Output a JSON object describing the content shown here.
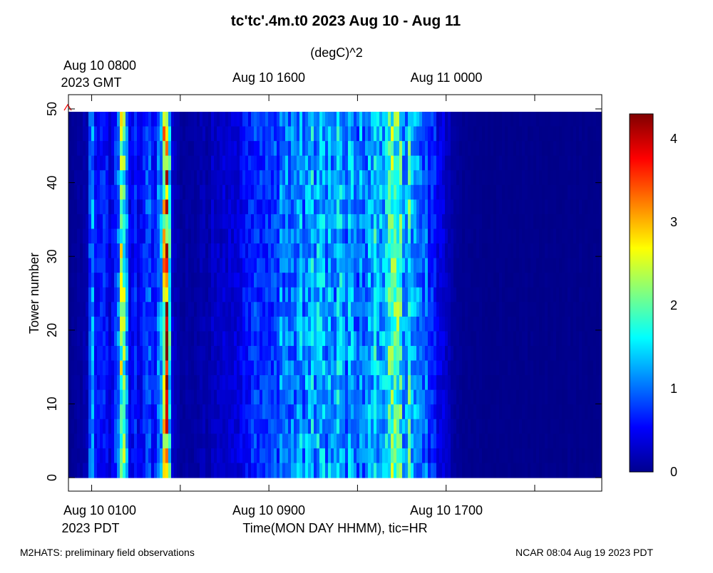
{
  "chart_data": {
    "type": "heatmap",
    "title": "tc'tc'.4m.t0 2023 Aug 10 - Aug 11",
    "subtitle": "(degC)^2",
    "ylabel": "Tower number",
    "xlabel": "Time(MON DAY HHMM), tic=HR",
    "ylim": [
      0,
      50
    ],
    "y_ticks": [
      "0",
      "10",
      "20",
      "30",
      "40",
      "50"
    ],
    "bottom_axis": {
      "timezone_label": "2023 PDT",
      "tick_labels": [
        "Aug 10 0100",
        "Aug 10 0900",
        "Aug 10 1700"
      ]
    },
    "top_axis": {
      "timezone_label": "2023 GMT",
      "tick_labels": [
        "Aug 10 0800",
        "Aug 10 1600",
        "Aug 11 0000"
      ]
    },
    "time_range_pdt_hours": [
      0,
      24
    ],
    "hour_ticks_pdt": [
      1,
      5,
      9,
      13,
      17,
      21
    ],
    "colorbar": {
      "min": 0,
      "max": 4.3,
      "tick_labels": [
        "0",
        "1",
        "2",
        "3",
        "4"
      ],
      "colormap": "jet"
    },
    "time_profile": {
      "note": "approximate mean variance (degC)^2 per column",
      "hours_pdt": [
        0.0,
        0.8,
        1.0,
        1.2,
        1.5,
        1.8,
        2.2,
        2.4,
        2.7,
        3.0,
        3.3,
        3.6,
        3.8,
        4.2,
        4.4,
        4.6,
        5.0,
        5.5,
        6.0,
        7.0,
        8.0,
        9.0,
        10.0,
        11.0,
        12.0,
        13.0,
        14.0,
        14.5,
        15.0,
        15.6,
        16.0,
        16.5,
        17.0,
        17.4,
        18.0,
        19.0,
        24.0
      ],
      "values": [
        0.05,
        0.2,
        1.3,
        0.5,
        0.6,
        0.4,
        0.8,
        2.4,
        0.5,
        0.6,
        0.4,
        1.1,
        0.4,
        1.5,
        4.1,
        0.3,
        0.15,
        0.15,
        0.2,
        0.3,
        0.5,
        0.8,
        1.1,
        1.2,
        1.3,
        1.0,
        1.4,
        1.9,
        1.6,
        1.3,
        0.9,
        0.6,
        0.3,
        0.1,
        0.07,
        0.05,
        0.05
      ]
    },
    "marker": {
      "symbol": "^",
      "hour_pdt": 0.0,
      "color": "#ff0000"
    }
  },
  "footer": {
    "left": "M2HATS: preliminary field observations",
    "right": "NCAR 08:04 Aug 19 2023 PDT"
  }
}
